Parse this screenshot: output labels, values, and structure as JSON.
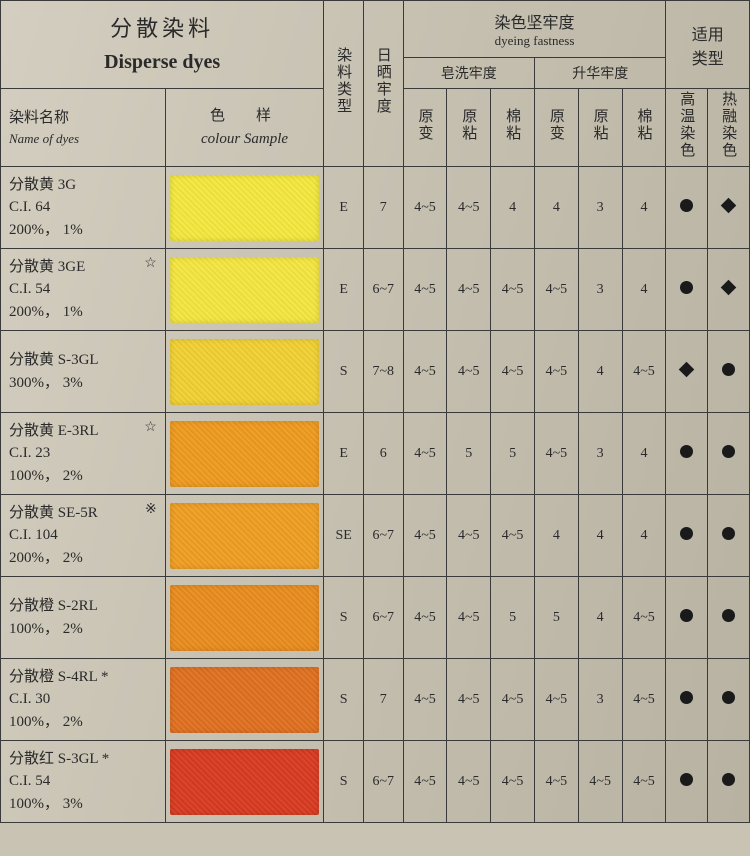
{
  "title": {
    "cn": "分散染料",
    "en": "Disperse dyes"
  },
  "cols": {
    "name_cn": "染料名称",
    "name_en": "Name of dyes",
    "colour_cn": "色　样",
    "colour_en": "colour Sample",
    "dye_type": "染料类型",
    "fastness_cn": "染色坚牢度",
    "fastness_en": "dyeing fastness",
    "light": "日晒牢度",
    "soap": "皂洗牢度",
    "subl": "升华牢度",
    "yb": "原变",
    "yz": "原粘",
    "mz": "棉粘",
    "app_cn": "适用",
    "app_lx": "类型",
    "ht": "高温染色",
    "melt": "热融染色"
  },
  "rows": [
    {
      "name": [
        "分散黄 3G",
        "C.I. 64",
        "200%，  1%"
      ],
      "mark": "",
      "swatch": "#f3e83e",
      "type": "E",
      "light": "7",
      "s1": "4~5",
      "s2": "4~5",
      "s3": "4",
      "u1": "4",
      "u2": "3",
      "u3": "4",
      "a1": "circle",
      "a2": "diamond"
    },
    {
      "name": [
        "分散黄 3GE",
        "C.I. 54",
        "200%，  1%"
      ],
      "mark": "☆",
      "swatch": "#f4e640",
      "type": "E",
      "light": "6~7",
      "s1": "4~5",
      "s2": "4~5",
      "s3": "4~5",
      "u1": "4~5",
      "u2": "3",
      "u3": "4",
      "a1": "circle",
      "a2": "diamond"
    },
    {
      "name": [
        "分散黄 S-3GL",
        "300%，  3%"
      ],
      "mark": "",
      "swatch": "#f1d033",
      "type": "S",
      "light": "7~8",
      "s1": "4~5",
      "s2": "4~5",
      "s3": "4~5",
      "u1": "4~5",
      "u2": "4",
      "u3": "4~5",
      "a1": "diamond",
      "a2": "circle"
    },
    {
      "name": [
        "分散黄 E-3RL",
        "C.I. 23",
        "100%，  2%"
      ],
      "mark": "☆",
      "swatch": "#ee9a1e",
      "type": "E",
      "light": "6",
      "s1": "4~5",
      "s2": "5",
      "s3": "5",
      "u1": "4~5",
      "u2": "3",
      "u3": "4",
      "a1": "circle",
      "a2": "circle"
    },
    {
      "name": [
        "分散黄 SE-5R",
        "C.I. 104",
        "200%，  2%"
      ],
      "mark": "※",
      "swatch": "#ef9e22",
      "type": "SE",
      "light": "6~7",
      "s1": "4~5",
      "s2": "4~5",
      "s3": "4~5",
      "u1": "4",
      "u2": "4",
      "u3": "4",
      "a1": "circle",
      "a2": "circle"
    },
    {
      "name": [
        "分散橙 S-2RL",
        "100%，  2%"
      ],
      "mark": "",
      "swatch": "#e98c1e",
      "type": "S",
      "light": "6~7",
      "s1": "4~5",
      "s2": "4~5",
      "s3": "5",
      "u1": "5",
      "u2": "4",
      "u3": "4~5",
      "a1": "circle",
      "a2": "circle"
    },
    {
      "name": [
        "分散橙 S-4RL *",
        "C.I. 30",
        "100%，  2%"
      ],
      "mark": "",
      "swatch": "#e07020",
      "type": "S",
      "light": "7",
      "s1": "4~5",
      "s2": "4~5",
      "s3": "4~5",
      "u1": "4~5",
      "u2": "3",
      "u3": "4~5",
      "a1": "circle",
      "a2": "circle"
    },
    {
      "name": [
        "分散红 S-3GL *",
        "C.I. 54",
        "100%，  3%"
      ],
      "mark": "",
      "swatch": "#d83a20",
      "type": "S",
      "light": "6~7",
      "s1": "4~5",
      "s2": "4~5",
      "s3": "4~5",
      "u1": "4~5",
      "u2": "4~5",
      "u3": "4~5",
      "a1": "circle",
      "a2": "circle"
    }
  ]
}
